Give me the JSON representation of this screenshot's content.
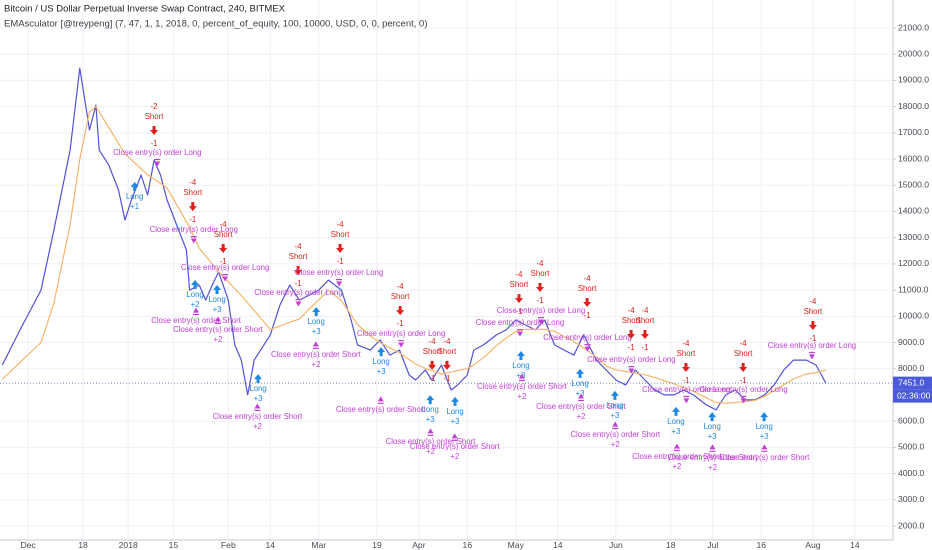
{
  "chart_data": {
    "type": "line",
    "title": "Bitcoin / US Dollar Perpetual Inverse Swap Contract, 240, BITMEX",
    "subtitle": "EMAsculator [@treypeng] (7, 47, 1, 1, 2018, 0, percent_of_equity, 100, 10000, USD, 0, 0, percent, 0)",
    "xlim": [
      -8.7,
      267.8
    ],
    "ylim": [
      1466,
      22068
    ],
    "grid": true,
    "xticks": [
      {
        "value": 0,
        "label": "Dec"
      },
      {
        "value": 17,
        "label": "18"
      },
      {
        "value": 31,
        "label": "2018"
      },
      {
        "value": 45,
        "label": "15"
      },
      {
        "value": 62,
        "label": "Feb"
      },
      {
        "value": 75,
        "label": "14"
      },
      {
        "value": 90,
        "label": "Mar"
      },
      {
        "value": 108,
        "label": "19"
      },
      {
        "value": 121,
        "label": "Apr"
      },
      {
        "value": 136,
        "label": "16"
      },
      {
        "value": 151,
        "label": "May"
      },
      {
        "value": 164,
        "label": "14"
      },
      {
        "value": 182,
        "label": "Jun"
      },
      {
        "value": 199,
        "label": "18"
      },
      {
        "value": 212,
        "label": "Jul"
      },
      {
        "value": 227,
        "label": "16"
      },
      {
        "value": 243,
        "label": "Aug"
      },
      {
        "value": 256,
        "label": "14"
      }
    ],
    "yticks": [
      {
        "value": 21000,
        "label": "21000.0"
      },
      {
        "value": 20000,
        "label": "20000.0"
      },
      {
        "value": 19000,
        "label": "19000.0"
      },
      {
        "value": 18000,
        "label": "18000.0"
      },
      {
        "value": 17000,
        "label": "17000.0"
      },
      {
        "value": 16000,
        "label": "16000.0"
      },
      {
        "value": 15000,
        "label": "15000.0"
      },
      {
        "value": 14000,
        "label": "14000.0"
      },
      {
        "value": 13000,
        "label": "13000.0"
      },
      {
        "value": 12000,
        "label": "12000.0"
      },
      {
        "value": 11000,
        "label": "11000.0"
      },
      {
        "value": 10000,
        "label": "10000.0"
      },
      {
        "value": 9000,
        "label": "9000.0"
      },
      {
        "value": 8000,
        "label": "8000.0"
      },
      {
        "value": 6000,
        "label": "6000.0"
      },
      {
        "value": 5000,
        "label": "5000.0"
      },
      {
        "value": 4000,
        "label": "4000.0"
      },
      {
        "value": 3000,
        "label": "3000.0"
      },
      {
        "value": 2000,
        "label": "2000.0"
      }
    ],
    "x": [
      -8,
      -2.5,
      4,
      8,
      13,
      16,
      19,
      21,
      22,
      25,
      28,
      30,
      32,
      35,
      37,
      39,
      41,
      43,
      46,
      49,
      50,
      53,
      55,
      57,
      59,
      62,
      64,
      66,
      68,
      70,
      72,
      75,
      78,
      81,
      84,
      87,
      90,
      93,
      97,
      100,
      102,
      106,
      109,
      112,
      115,
      118,
      120,
      123,
      125,
      128,
      131,
      133,
      136,
      138,
      141,
      145,
      148,
      151,
      154,
      157,
      160,
      163,
      166,
      169,
      172,
      176,
      179,
      182,
      185,
      188,
      191,
      194,
      197,
      200,
      203,
      206,
      210,
      213,
      216,
      219,
      222,
      225,
      228,
      231,
      234,
      237,
      241,
      244,
      247
    ],
    "series": [
      {
        "color": "#5252d6",
        "values": [
          8140,
          9480,
          11000,
          13290,
          16340,
          19470,
          17110,
          18060,
          16340,
          15770,
          14820,
          13670,
          14440,
          15390,
          14630,
          15960,
          15390,
          14440,
          13480,
          12530,
          11000,
          11190,
          10620,
          11190,
          11690,
          10620,
          8910,
          8330,
          7000,
          8330,
          8710,
          9290,
          10430,
          11190,
          10620,
          10810,
          11000,
          11380,
          11000,
          9860,
          8910,
          8710,
          9100,
          8520,
          8710,
          7760,
          7570,
          7950,
          7570,
          8140,
          7190,
          7380,
          7760,
          8710,
          8910,
          9290,
          9480,
          9860,
          9670,
          9480,
          9860,
          8910,
          8710,
          8520,
          9290,
          8330,
          7950,
          7570,
          7380,
          7950,
          7570,
          7190,
          7000,
          7000,
          7190,
          7000,
          6620,
          6430,
          7000,
          7190,
          6810,
          6810,
          7000,
          7380,
          7950,
          8330,
          8330,
          8140,
          7451
        ]
      },
      {
        "color": "#f5b56a",
        "values": [
          7600,
          8240,
          9000,
          10500,
          13500,
          16000,
          17800,
          18000,
          17800,
          17200,
          16600,
          16200,
          15970,
          15630,
          15400,
          15230,
          15070,
          14900,
          14260,
          13610,
          13400,
          12600,
          12300,
          12000,
          11700,
          11310,
          11060,
          10800,
          10510,
          10220,
          9930,
          9500,
          9630,
          9770,
          9900,
          10270,
          10630,
          11000,
          10600,
          10050,
          9680,
          9250,
          9000,
          8800,
          8600,
          8350,
          8180,
          8010,
          7930,
          7800,
          7880,
          7930,
          8000,
          8150,
          8420,
          8880,
          9170,
          9420,
          9500,
          9500,
          9500,
          9430,
          9230,
          9030,
          8800,
          8440,
          8100,
          7960,
          7900,
          7830,
          7770,
          7670,
          7540,
          7420,
          7280,
          7140,
          6890,
          6710,
          6680,
          6710,
          6750,
          6790,
          6950,
          7170,
          7390,
          7610,
          7800,
          7850,
          7950
        ]
      }
    ],
    "signal_colors": {
      "long": "#1e88e5",
      "short": "#e0201c",
      "close-long": "#c23fd6",
      "close-short": "#c23fd6"
    },
    "signals": [
      {
        "mark": "long",
        "x": 33,
        "price": 15010,
        "label": "Long",
        "size": "+1"
      },
      {
        "mark": "short",
        "x": 39,
        "price": 17030,
        "qty": "-2",
        "label": "Short",
        "size": "-1"
      },
      {
        "mark": "close-long",
        "x": 40,
        "price": 15850,
        "label": "Close entry(s) order Long"
      },
      {
        "mark": "short",
        "x": 51,
        "price": 14130,
        "qty": "-4",
        "label": "Short",
        "size": "-1"
      },
      {
        "mark": "close-long",
        "x": 51.3,
        "price": 12910,
        "label": "Close entry(s) order Long"
      },
      {
        "mark": "short",
        "x": 60.4,
        "price": 12530,
        "qty": "-4",
        "label": "Short",
        "size": "-1"
      },
      {
        "mark": "close-long",
        "x": 61,
        "price": 11460,
        "label": "Close entry(s) order Long"
      },
      {
        "mark": "long",
        "x": 51.7,
        "price": 11270,
        "label": "Long",
        "size": "+2"
      },
      {
        "mark": "long",
        "x": 58.5,
        "price": 11080,
        "label": "Long",
        "size": "+3"
      },
      {
        "mark": "close-short",
        "x": 52,
        "price": 10200,
        "label": "Close entry(s) order Short"
      },
      {
        "mark": "close-short",
        "x": 58.8,
        "price": 9860,
        "label": "Close entry(s) order Short",
        "size": "+2"
      },
      {
        "mark": "long",
        "x": 71.2,
        "price": 7680,
        "label": "Long",
        "size": "+3"
      },
      {
        "mark": "close-short",
        "x": 71,
        "price": 6540,
        "label": "Close entry(s) order Short",
        "size": "+2"
      },
      {
        "mark": "short",
        "x": 83.6,
        "price": 11690,
        "qty": "-4",
        "label": "Short",
        "size": "-1"
      },
      {
        "mark": "close-long",
        "x": 83.7,
        "price": 10510,
        "label": "Close entry(s) order Long"
      },
      {
        "mark": "long",
        "x": 89.2,
        "price": 10240,
        "label": "Long",
        "size": "+3"
      },
      {
        "mark": "close-short",
        "x": 89.1,
        "price": 8910,
        "label": "Close entry(s) order Short",
        "size": "+2"
      },
      {
        "mark": "short",
        "x": 96.6,
        "price": 12530,
        "qty": "-4",
        "label": "Short",
        "size": "-1"
      },
      {
        "mark": "close-long",
        "x": 96.3,
        "price": 11270,
        "label": "Close entry(s) order Long"
      },
      {
        "mark": "short",
        "x": 115.2,
        "price": 10160,
        "qty": "-4",
        "label": "Short",
        "size": "-1"
      },
      {
        "mark": "close-long",
        "x": 115.5,
        "price": 8940,
        "label": "Close entry(s) order Long"
      },
      {
        "mark": "long",
        "x": 109.3,
        "price": 8710,
        "label": "Long",
        "size": "+3"
      },
      {
        "mark": "close-short",
        "x": 109.2,
        "price": 6810,
        "label": "Close entry(s) order Short"
      },
      {
        "mark": "short",
        "x": 125.1,
        "price": 8070,
        "qty": "-4",
        "label": "Short",
        "size": "-1"
      },
      {
        "mark": "short",
        "x": 129.7,
        "price": 8070,
        "qty": "-4",
        "label": "Short",
        "size": "-1"
      },
      {
        "mark": "long",
        "x": 124.5,
        "price": 6880,
        "label": "Long",
        "size": "+3"
      },
      {
        "mark": "long",
        "x": 132.2,
        "price": 6810,
        "label": "Long",
        "size": "+3"
      },
      {
        "mark": "close-short",
        "x": 124.6,
        "price": 5590,
        "label": "Close entry(s) order Short",
        "size": "+2"
      },
      {
        "mark": "close-short",
        "x": 132.1,
        "price": 5400,
        "label": "Close entry(s) order Short",
        "size": "+2"
      },
      {
        "mark": "short",
        "x": 152,
        "price": 10620,
        "qty": "-4",
        "label": "Short",
        "size": "-1"
      },
      {
        "mark": "short",
        "x": 158.5,
        "price": 11040,
        "qty": "-4",
        "label": "Short",
        "size": "-1"
      },
      {
        "mark": "close-long",
        "x": 152.3,
        "price": 9360,
        "label": "Close entry(s) order Long"
      },
      {
        "mark": "close-long",
        "x": 158.8,
        "price": 9820,
        "label": "Close entry(s) order Long"
      },
      {
        "mark": "long",
        "x": 152.6,
        "price": 8560,
        "label": "Long",
        "size": "+3"
      },
      {
        "mark": "close-short",
        "x": 152.9,
        "price": 7680,
        "label": "Close entry(s) order Short",
        "size": "+2"
      },
      {
        "mark": "short",
        "x": 173.1,
        "price": 10470,
        "qty": "-4",
        "label": "Short",
        "size": "-1"
      },
      {
        "mark": "close-long",
        "x": 173.2,
        "price": 8790,
        "label": "Close entry(s) order Long"
      },
      {
        "mark": "long",
        "x": 170.9,
        "price": 7880,
        "label": "Long",
        "size": "+3"
      },
      {
        "mark": "close-short",
        "x": 171.2,
        "price": 6920,
        "label": "Close entry(s) order Short",
        "size": "+2"
      },
      {
        "mark": "short",
        "x": 186.7,
        "price": 9250,
        "qty": "-4",
        "label": "Short",
        "size": "-1"
      },
      {
        "mark": "short",
        "x": 191,
        "price": 9250,
        "qty": "-4",
        "label": "Short",
        "size": "-1"
      },
      {
        "mark": "close-long",
        "x": 186.8,
        "price": 7950,
        "label": "Close entry(s) order Long"
      },
      {
        "mark": "long",
        "x": 181.7,
        "price": 7040,
        "label": "Long",
        "size": "+3"
      },
      {
        "mark": "close-short",
        "x": 181.8,
        "price": 5850,
        "label": "Close entry(s) order Short",
        "size": "+2"
      },
      {
        "mark": "short",
        "x": 203.7,
        "price": 7990,
        "qty": "-4",
        "label": "Short",
        "size": "-1"
      },
      {
        "mark": "close-long",
        "x": 203.8,
        "price": 6810,
        "label": "Close entry(s) order Long"
      },
      {
        "mark": "long",
        "x": 200.6,
        "price": 6430,
        "label": "Long",
        "size": "+3"
      },
      {
        "mark": "close-short",
        "x": 200.9,
        "price": 5010,
        "label": "Close entry(s) order Short",
        "size": "+2"
      },
      {
        "mark": "long",
        "x": 211.8,
        "price": 6230,
        "label": "Long",
        "size": "+3"
      },
      {
        "mark": "close-short",
        "x": 211.9,
        "price": 4980,
        "label": "Close entry(s) order Short",
        "size": "+2"
      },
      {
        "mark": "short",
        "x": 221.4,
        "price": 7990,
        "qty": "-4",
        "label": "Short",
        "size": "-1"
      },
      {
        "mark": "close-long",
        "x": 221.5,
        "price": 6810,
        "label": "Close entry(s) order Long"
      },
      {
        "mark": "long",
        "x": 227.9,
        "price": 6230,
        "label": "Long",
        "size": "+3"
      },
      {
        "mark": "close-short",
        "x": 228,
        "price": 4980,
        "label": "Close entry(s) order Short"
      },
      {
        "mark": "short",
        "x": 243,
        "price": 9590,
        "qty": "-4",
        "label": "Short",
        "size": "-1"
      },
      {
        "mark": "close-long",
        "x": 242.7,
        "price": 8490,
        "label": "Close entry(s) order Long"
      }
    ],
    "last_price": {
      "value": 7451,
      "label": "7451.0"
    },
    "last_price_color": "#4a5ad8",
    "countdown": "02:36:00"
  }
}
